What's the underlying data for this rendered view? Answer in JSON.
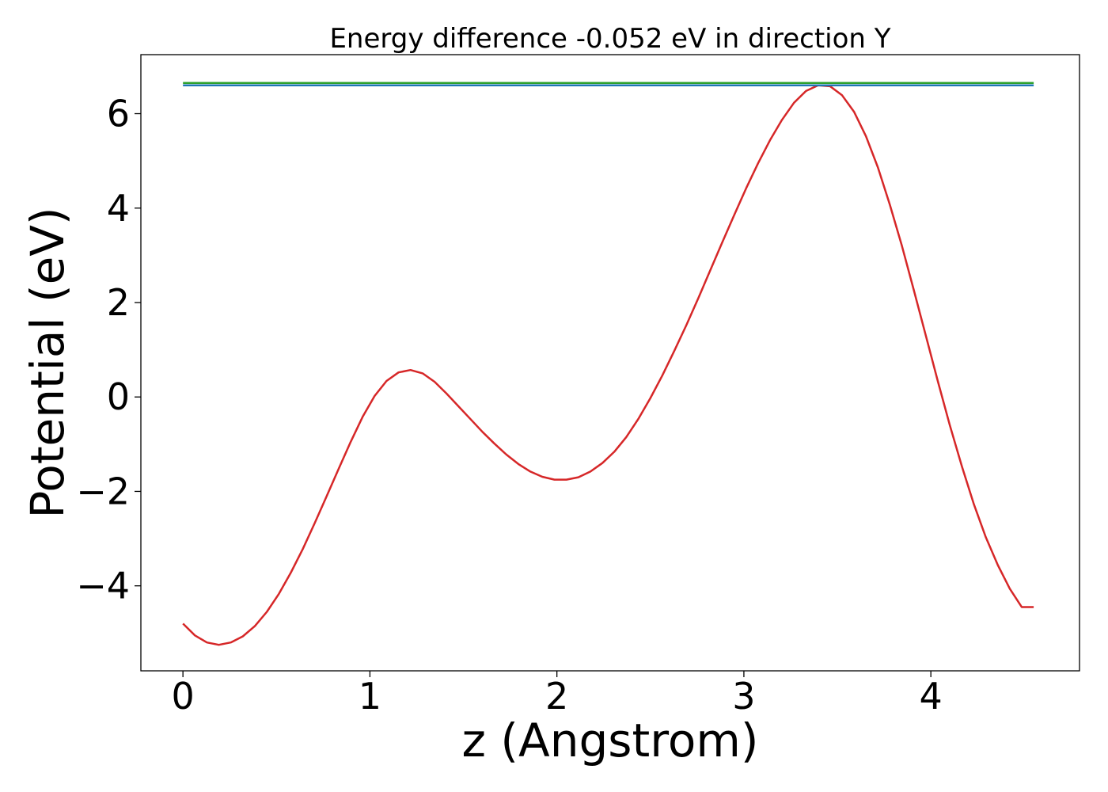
{
  "chart_data": {
    "type": "line",
    "title": "Energy difference -0.052 eV in direction Y",
    "xlabel": "z (Angstrom)",
    "ylabel": "Potential (eV)",
    "xlim": [
      -0.225,
      4.795
    ],
    "ylim": [
      -5.8,
      7.25
    ],
    "xticks": [
      0,
      1,
      2,
      3,
      4
    ],
    "xtick_labels": [
      "0",
      "1",
      "2",
      "3",
      "4"
    ],
    "yticks": [
      -4,
      -2,
      0,
      2,
      4,
      6
    ],
    "ytick_labels": [
      "−4",
      "−2",
      "0",
      "2",
      "4",
      "6"
    ],
    "grid": false,
    "series": [
      {
        "color": "#d62728",
        "x": [
          0,
          0.064,
          0.128,
          0.192,
          0.256,
          0.32,
          0.385,
          0.449,
          0.513,
          0.577,
          0.641,
          0.705,
          0.769,
          0.833,
          0.897,
          0.961,
          1.025,
          1.089,
          1.153,
          1.217,
          1.282,
          1.346,
          1.41,
          1.474,
          1.538,
          1.602,
          1.666,
          1.73,
          1.794,
          1.858,
          1.922,
          1.987,
          2.051,
          2.115,
          2.179,
          2.243,
          2.307,
          2.371,
          2.435,
          2.499,
          2.563,
          2.627,
          2.692,
          2.756,
          2.82,
          2.884,
          2.948,
          3.012,
          3.076,
          3.14,
          3.204,
          3.268,
          3.332,
          3.397,
          3.461,
          3.525,
          3.589,
          3.653,
          3.717,
          3.781,
          3.845,
          3.909,
          3.973,
          4.037,
          4.101,
          4.166,
          4.23,
          4.294,
          4.358,
          4.422,
          4.486,
          4.55
        ],
        "y": [
          -4.8,
          -5.05,
          -5.2,
          -5.25,
          -5.2,
          -5.07,
          -4.85,
          -4.55,
          -4.17,
          -3.72,
          -3.22,
          -2.67,
          -2.1,
          -1.52,
          -0.95,
          -0.42,
          0.02,
          0.34,
          0.52,
          0.57,
          0.5,
          0.32,
          0.07,
          -0.2,
          -0.47,
          -0.74,
          -0.99,
          -1.22,
          -1.42,
          -1.58,
          -1.69,
          -1.75,
          -1.75,
          -1.7,
          -1.58,
          -1.4,
          -1.16,
          -0.85,
          -0.47,
          -0.03,
          0.45,
          0.97,
          1.52,
          2.09,
          2.68,
          3.27,
          3.85,
          4.42,
          4.95,
          5.44,
          5.87,
          6.23,
          6.48,
          6.6,
          6.58,
          6.39,
          6.04,
          5.52,
          4.86,
          4.07,
          3.2,
          2.26,
          1.3,
          0.34,
          -0.59,
          -1.47,
          -2.27,
          -2.97,
          -3.56,
          -4.06,
          -4.45,
          -4.45
        ]
      },
      {
        "color": "#1f77b4",
        "x": [
          0,
          4.55
        ],
        "y": [
          6.6,
          6.6
        ]
      },
      {
        "color": "#2ca02c",
        "x": [
          0,
          4.55
        ],
        "y": [
          6.652,
          6.652
        ]
      }
    ]
  }
}
